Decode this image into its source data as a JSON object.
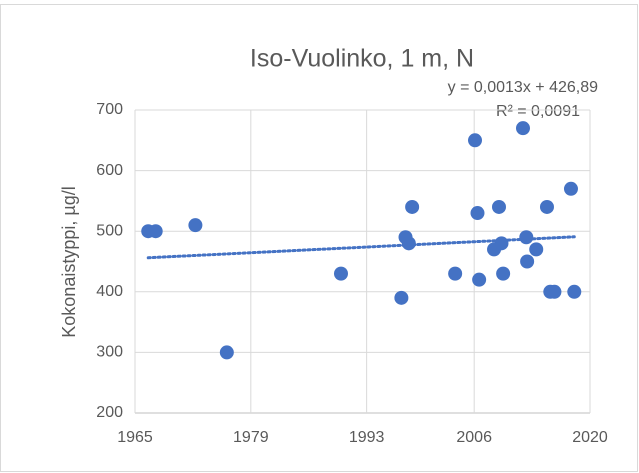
{
  "chart_data": {
    "type": "scatter",
    "title": "Iso-Vuolinko, 1 m, N",
    "ylabel": "Kokonaistyppi, µg/l",
    "annotations": [
      "y = 0,0013x + 426,89",
      "R² = 0,0091"
    ],
    "color": "#4472c4",
    "x": [
      1966.6,
      1967.5,
      1972.3,
      1976.1,
      1989.9,
      1997.2,
      1997.7,
      1998.1,
      1998.5,
      2003.7,
      2006.1,
      2006.4,
      2006.6,
      2008.4,
      2009.0,
      2009.3,
      2009.5,
      2011.9,
      2012.3,
      2012.4,
      2013.5,
      2014.8,
      2015.2,
      2015.7,
      2017.7,
      2018.1
    ],
    "values": [
      500,
      500,
      510,
      300,
      430,
      390,
      490,
      480,
      540,
      430,
      650,
      530,
      420,
      470,
      540,
      480,
      430,
      670,
      490,
      450,
      470,
      540,
      400,
      400,
      570,
      400
    ],
    "xlim": [
      1965,
      2020
    ],
    "xticks": [
      1965,
      1979,
      1993,
      2006,
      2020
    ],
    "ylim": [
      200,
      700
    ],
    "yticks": [
      200,
      300,
      400,
      500,
      600,
      700
    ],
    "grid": true,
    "trendline": true
  }
}
